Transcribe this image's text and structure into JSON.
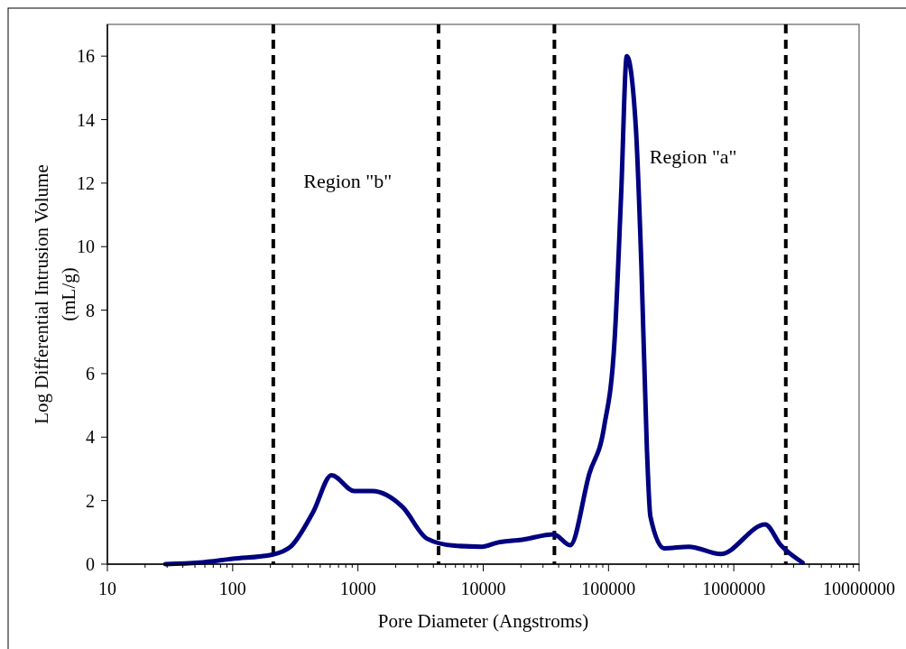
{
  "chart_data": {
    "type": "line",
    "xlabel": "Pore Diameter (Angstroms)",
    "ylabel": "Log Differential Intrusion Volume (mL/g)",
    "log": "x",
    "xlim": [
      10,
      10000000
    ],
    "xticks": [
      10,
      100,
      1000,
      10000,
      100000,
      1000000,
      10000000
    ],
    "ylim": [
      0,
      17
    ],
    "yticks": [
      0,
      2,
      4,
      6,
      8,
      10,
      12,
      14,
      16
    ],
    "line_style": "solid",
    "series": [
      {
        "color": "#000080",
        "x": [
          29,
          54,
          100,
          207,
          290,
          440,
          615,
          935,
          1300,
          2270,
          3570,
          5900,
          9750,
          13000,
          20400,
          36600,
          49500,
          70300,
          92000,
          112000,
          126000,
          140000,
          165000,
          183000,
          202000,
          216000,
          278000,
          437000,
          785000,
          1780000,
          2370000,
          3540000
        ],
        "values": [
          0,
          0.05,
          0.17,
          0.3,
          0.55,
          1.65,
          2.8,
          2.3,
          2.3,
          1.8,
          0.8,
          0.58,
          0.55,
          0.68,
          0.77,
          0.94,
          0.6,
          2.85,
          4.3,
          7.1,
          11.6,
          16,
          13.8,
          9.4,
          3.75,
          1.5,
          0.5,
          0.55,
          0.32,
          1.25,
          0.6,
          0.05
        ]
      }
    ],
    "ref_lines": [
      {
        "axis": "x",
        "value": 211,
        "color": "#000000",
        "line_style": "dashed"
      },
      {
        "axis": "x",
        "value": 4400,
        "color": "#000000",
        "line_style": "dashed"
      },
      {
        "axis": "x",
        "value": 37000,
        "color": "#000000",
        "line_style": "dashed"
      },
      {
        "axis": "x",
        "value": 2600000,
        "color": "#000000",
        "line_style": "dashed"
      }
    ],
    "annotations": [
      "Region \"b\"",
      "Region \"a\""
    ]
  }
}
